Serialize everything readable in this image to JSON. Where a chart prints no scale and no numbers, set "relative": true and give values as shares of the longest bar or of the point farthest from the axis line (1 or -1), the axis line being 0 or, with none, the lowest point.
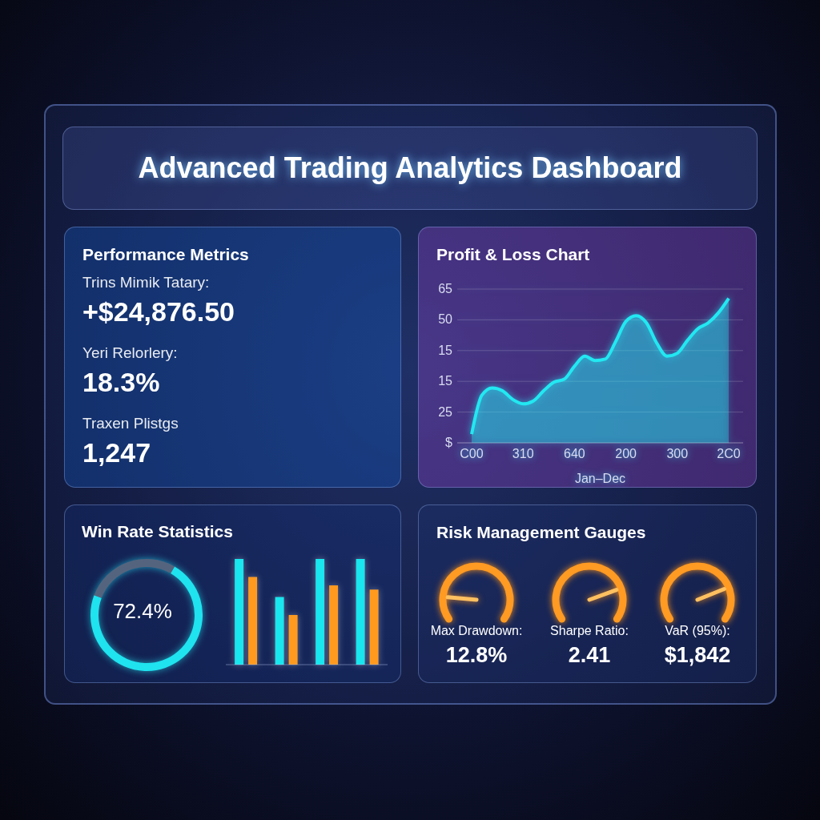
{
  "chart_data": [
    {
      "type": "other",
      "title": "Advanced Trading Analytics Dashboard"
    },
    {
      "type": "other",
      "title": "Performance Metrics",
      "annotations": [
        "Trins Mimik Tatary:",
        "+$24,876.50",
        "Yeri Relorlery:",
        "18.3%",
        "Traxen Plistgs",
        "1,247"
      ]
    },
    {
      "type": "area",
      "title": "Profit & Loss Chart",
      "xlabel": "Jan–Dec",
      "color": "#22e8f2",
      "grid": "y",
      "relative": true,
      "annotations": [
        "65",
        "50",
        "15",
        "15",
        "25",
        "$"
      ],
      "categories": [
        "C00",
        null,
        null,
        null,
        null,
        "310",
        null,
        null,
        null,
        null,
        "640",
        null,
        null,
        null,
        null,
        "200",
        null,
        null,
        null,
        null,
        "300",
        null,
        null,
        null,
        null,
        "2C0"
      ],
      "values": [
        0.06,
        0.33,
        0.38,
        0.36,
        0.3,
        0.27,
        0.29,
        0.36,
        0.42,
        0.44,
        0.53,
        0.6,
        0.57,
        0.58,
        0.7,
        0.84,
        0.88,
        0.83,
        0.69,
        0.6,
        0.62,
        0.71,
        0.79,
        0.83,
        0.9,
        1
      ]
    },
    {
      "type": "donut",
      "title": "Win Rate Statistics",
      "categories": [
        null,
        null
      ],
      "values": [
        72.4,
        27.6
      ],
      "colors": [
        "#1fe3ef",
        "#55647e"
      ],
      "annotations": [
        "72.4%"
      ]
    },
    {
      "type": "bar",
      "relative": true,
      "categories": [
        null,
        null,
        null,
        null
      ],
      "series": [
        {
          "color": "#19e6ee",
          "values": [
            1,
            0.64,
            1,
            1
          ]
        },
        {
          "color": "#ff9a1f",
          "values": [
            0.83,
            0.47,
            0.75,
            0.71
          ]
        }
      ]
    },
    {
      "type": "other",
      "title": "Risk Management Gauges",
      "annotations": [
        "Max Drawdown:",
        "12.8%",
        "Sharpe Ratio:",
        "2.41",
        "VaR (95%):",
        "$1,842"
      ]
    }
  ]
}
